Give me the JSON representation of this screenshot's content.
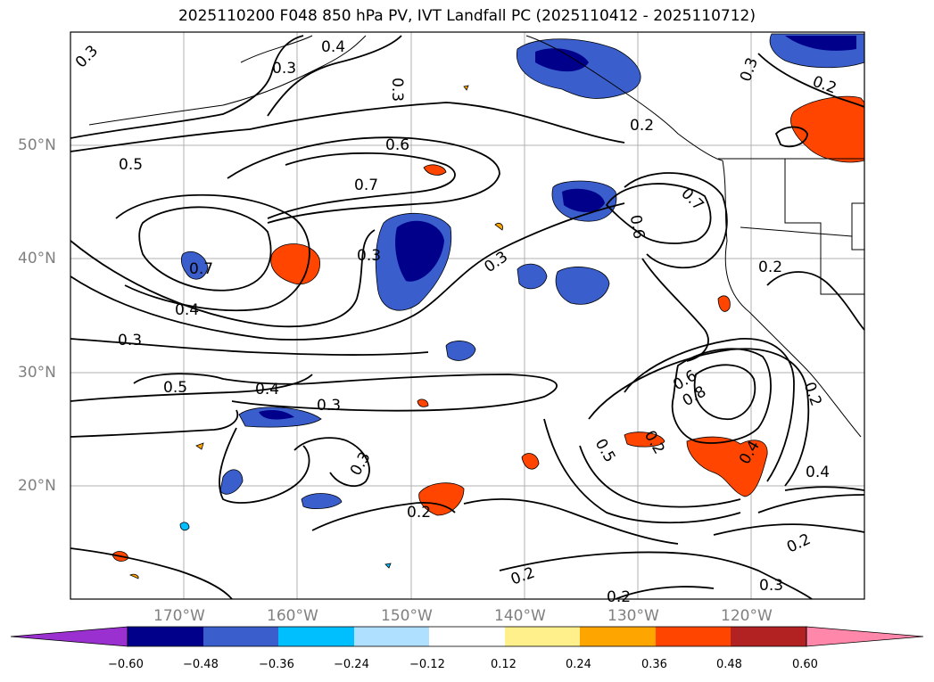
{
  "title": "2025110200 F048 850 hPa PV, IVT Landfall PC (2025110412 - 2025110712)",
  "lat_labels": [
    "50°N",
    "40°N",
    "30°N",
    "20°N"
  ],
  "lon_labels": [
    "170°W",
    "160°W",
    "150°W",
    "140°W",
    "130°W",
    "120°W"
  ],
  "colorbar": {
    "ticks": [
      "−0.60",
      "−0.48",
      "−0.36",
      "−0.24",
      "−0.12",
      "0.12",
      "0.24",
      "0.36",
      "0.48",
      "0.60"
    ],
    "colors": [
      "#9b30d0",
      "#00008b",
      "#3a5fcd",
      "#00bfff",
      "#b0e0ff",
      "#ffffff",
      "#fff08c",
      "#ffa500",
      "#ff4500",
      "#b22222",
      "#ff88aa"
    ]
  },
  "contour_labels": [
    "0.3",
    "0.4",
    "0.3",
    "0.3",
    "0.6",
    "0.5",
    "0.7",
    "0.3",
    "0.7",
    "0.6",
    "0.7",
    "0.3",
    "0.2",
    "0.4",
    "0.3",
    "0.5",
    "0.4",
    "0.3",
    "0.3",
    "0.2",
    "0.2",
    "0.6",
    "0.8",
    "0.5",
    "0.4",
    "0.4",
    "0.2",
    "0.2",
    "0.3",
    "0.2",
    "0.2",
    "0.3",
    "0.2",
    "0.2"
  ]
}
